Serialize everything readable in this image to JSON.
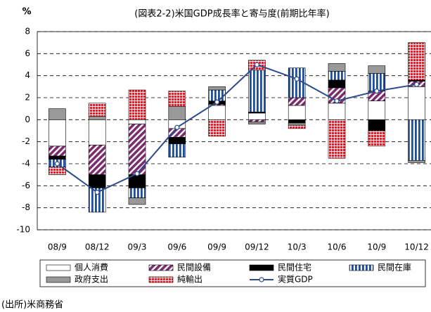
{
  "chart_data": {
    "type": "bar",
    "stacked": true,
    "title": "(図表2-2)米国GDP成長率と寄与度(前期比年率)",
    "y_label": "%",
    "source": "(出所)米商務省",
    "categories": [
      "08/9",
      "08/12",
      "09/3",
      "09/6",
      "09/9",
      "09/12",
      "10/3",
      "10/6",
      "10/9",
      "10/12"
    ],
    "series": [
      {
        "name": "個人消費",
        "color": "#ffffff",
        "values": [
          -2.4,
          -2.3,
          -0.4,
          -0.8,
          1.3,
          0.6,
          1.3,
          1.5,
          1.7,
          3.0
        ]
      },
      {
        "name": "民間設備",
        "color": "#7b2c6e",
        "values": [
          -0.9,
          -2.7,
          -4.6,
          -0.8,
          0.1,
          -0.2,
          0.7,
          1.4,
          0.9,
          0.5
        ]
      },
      {
        "name": "民間住宅",
        "color": "#000000",
        "values": [
          -0.3,
          -1.2,
          -1.2,
          -0.6,
          0.3,
          0.1,
          -0.3,
          0.7,
          -1.0,
          0.1
        ]
      },
      {
        "name": "民間在庫",
        "color": "#1f4e9c",
        "values": [
          -0.7,
          -2.2,
          -0.9,
          -1.2,
          1.0,
          3.8,
          2.7,
          0.8,
          1.6,
          -3.7
        ]
      },
      {
        "name": "政府支出",
        "color": "#999999",
        "values": [
          1.0,
          0.3,
          -0.6,
          1.2,
          0.3,
          -0.2,
          -0.2,
          0.7,
          0.7,
          -0.2
        ]
      },
      {
        "name": "純輸出",
        "color": "#e0202a",
        "values": [
          -0.7,
          1.2,
          2.7,
          1.4,
          -1.5,
          0.9,
          -0.3,
          -3.5,
          -1.4,
          3.4
        ]
      },
      {
        "name": "実質GDP",
        "type": "line",
        "color": "#2a4a8a",
        "values": [
          -4.0,
          -6.6,
          -4.9,
          -0.7,
          1.6,
          5.0,
          3.7,
          1.7,
          2.6,
          3.2
        ]
      }
    ],
    "ylim": [
      -10,
      8
    ],
    "yticks": [
      -10,
      -8,
      -6,
      -4,
      -2,
      0,
      2,
      4,
      6,
      8
    ],
    "grid": true
  }
}
